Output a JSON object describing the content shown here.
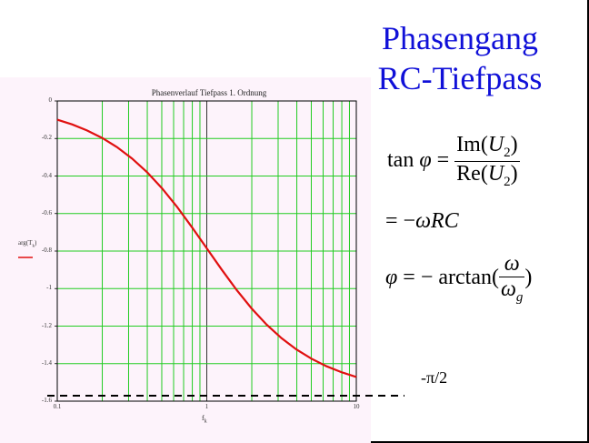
{
  "slide": {
    "title_line1": "Phasengang",
    "title_line2": "RC-Tiefpass"
  },
  "chart_data": {
    "type": "line",
    "title": "Phasenverlauf Tiefpass 1. Ordnung",
    "xlabel": "f",
    "xlabel_sub": "k",
    "ylabel_fn": "arg",
    "ylabel_open": "(",
    "ylabel_var": "T",
    "ylabel_sub": "k",
    "ylabel_close": ")",
    "x_scale": "log",
    "xlim": [
      0.1,
      10
    ],
    "ylim": [
      -1.6,
      0
    ],
    "x_ticks": [
      "0.1",
      "1",
      "10"
    ],
    "y_ticks": [
      "0",
      "-0.2",
      "-0.4",
      "-0.6",
      "-0.8",
      "-1",
      "-1.2",
      "-1.4",
      "-1.6"
    ],
    "grid": true,
    "series": [
      {
        "color": "#e01010",
        "x": [
          0.1,
          0.126,
          0.158,
          0.2,
          0.251,
          0.316,
          0.398,
          0.501,
          0.631,
          0.794,
          1.0,
          1.259,
          1.585,
          1.995,
          2.512,
          3.162,
          3.981,
          5.012,
          6.31,
          7.943,
          10.0
        ],
        "y": [
          -0.0997,
          -0.1253,
          -0.1568,
          -0.1974,
          -0.246,
          -0.3065,
          -0.3788,
          -0.4647,
          -0.563,
          -0.6717,
          -0.7854,
          -0.8991,
          -1.0078,
          -1.106,
          -1.1919,
          -1.2643,
          -1.3248,
          -1.3738,
          -1.4137,
          -1.4455,
          -1.4711
        ]
      }
    ],
    "reference_line": {
      "y": -1.5708,
      "label": "-π/2",
      "style": "dashed",
      "color": "#000000"
    },
    "colors": {
      "grid": "#22cc22",
      "axis": "#000000",
      "curve": "#e01010",
      "background": "#fdf3fb"
    }
  },
  "formulas": {
    "f1": {
      "lhs_fn": "tan",
      "lhs_var": "φ",
      "eq": "=",
      "num_fn": "Im",
      "num_open": "(",
      "num_var": "U",
      "num_sub": "2",
      "num_close": ")",
      "den_fn": "Re",
      "den_open": "(",
      "den_var": "U",
      "den_sub": "2",
      "den_close": ")"
    },
    "f2": {
      "eq": "= −",
      "rest": "ωRC"
    },
    "f3": {
      "lhs": "φ",
      "eq": "= − arctan(",
      "num": "ω",
      "den_var": "ω",
      "den_sub": "g",
      "close": ")"
    }
  }
}
